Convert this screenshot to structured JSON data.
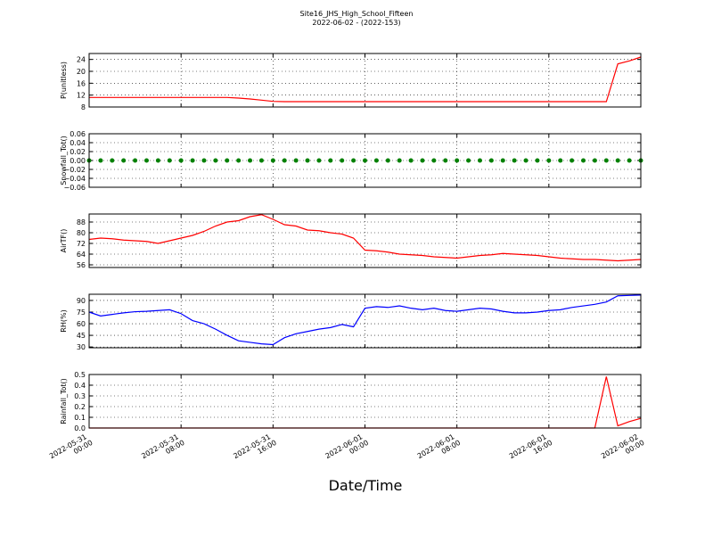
{
  "figure": {
    "title": "Site16_JHS_High_School_Fifteen",
    "subtitle": "2022-06-02 - (2022-153)",
    "xlabel": "Date/Time",
    "xlim": [
      "2022-05-31 00:00",
      "2022-06-02 00:00"
    ],
    "xticks": [
      "2022-05-31 00:00",
      "2022-05-31 08:00",
      "2022-05-31 16:00",
      "2022-06-01 00:00",
      "2022-06-01 08:00",
      "2022-06-01 16:00",
      "2022-06-02 00:00"
    ],
    "x": [
      "2022-05-31 00:00",
      "2022-05-31 01:00",
      "2022-05-31 02:00",
      "2022-05-31 03:00",
      "2022-05-31 04:00",
      "2022-05-31 05:00",
      "2022-05-31 06:00",
      "2022-05-31 07:00",
      "2022-05-31 08:00",
      "2022-05-31 09:00",
      "2022-05-31 10:00",
      "2022-05-31 11:00",
      "2022-05-31 12:00",
      "2022-05-31 13:00",
      "2022-05-31 14:00",
      "2022-05-31 15:00",
      "2022-05-31 16:00",
      "2022-05-31 17:00",
      "2022-05-31 18:00",
      "2022-05-31 19:00",
      "2022-05-31 20:00",
      "2022-05-31 21:00",
      "2022-05-31 22:00",
      "2022-05-31 23:00",
      "2022-06-01 00:00",
      "2022-06-01 01:00",
      "2022-06-01 02:00",
      "2022-06-01 03:00",
      "2022-06-01 04:00",
      "2022-06-01 05:00",
      "2022-06-01 06:00",
      "2022-06-01 07:00",
      "2022-06-01 08:00",
      "2022-06-01 09:00",
      "2022-06-01 10:00",
      "2022-06-01 11:00",
      "2022-06-01 12:00",
      "2022-06-01 13:00",
      "2022-06-01 14:00",
      "2022-06-01 15:00",
      "2022-06-01 16:00",
      "2022-06-01 17:00",
      "2022-06-01 18:00",
      "2022-06-01 19:00",
      "2022-06-01 20:00",
      "2022-06-01 21:00",
      "2022-06-01 22:00",
      "2022-06-01 23:00",
      "2022-06-02 00:00"
    ]
  },
  "chart_data": [
    {
      "type": "line",
      "ylabel": "P(unitless)",
      "ylim": [
        8,
        26
      ],
      "yticks": [
        8,
        12,
        16,
        20,
        24
      ],
      "grid": true,
      "series": [
        {
          "name": "P",
          "color": "#ff0000",
          "values": [
            11.2,
            11.2,
            11.2,
            11.2,
            11.2,
            11.2,
            11.2,
            11.2,
            11.2,
            11.2,
            11.2,
            11.2,
            11.2,
            11,
            10.7,
            10.3,
            9.9,
            9.8,
            9.8,
            9.8,
            9.8,
            9.8,
            9.8,
            9.8,
            9.8,
            9.8,
            9.8,
            9.8,
            9.8,
            9.8,
            9.8,
            9.8,
            9.8,
            9.8,
            9.8,
            9.8,
            9.8,
            9.8,
            9.8,
            9.8,
            9.8,
            9.8,
            9.8,
            9.8,
            9.8,
            9.8,
            22.5,
            23.5,
            24.8
          ]
        }
      ]
    },
    {
      "type": "scatter",
      "ylabel": "Snowfall_Tot()",
      "ylim": [
        -0.06,
        0.06
      ],
      "yticks": [
        {
          "value": -0.06,
          "label": "−0.06"
        },
        {
          "value": -0.04,
          "label": "−0.04"
        },
        {
          "value": -0.02,
          "label": "−0.02"
        },
        {
          "value": 0,
          "label": "0.00"
        },
        0.02,
        0.04,
        0.06
      ],
      "grid": true,
      "series": [
        {
          "name": "Snowfall_Tot",
          "color": "#008000",
          "values": [
            0,
            0,
            0,
            0,
            0,
            0,
            0,
            0,
            0,
            0,
            0,
            0,
            0,
            0,
            0,
            0,
            0,
            0,
            0,
            0,
            0,
            0,
            0,
            0,
            0,
            0,
            0,
            0,
            0,
            0,
            0,
            0,
            0,
            0,
            0,
            0,
            0,
            0,
            0,
            0,
            0,
            0,
            0,
            0,
            0,
            0,
            0,
            0,
            0
          ]
        }
      ]
    },
    {
      "type": "line",
      "ylabel": "AirTF()",
      "ylim": [
        54,
        94
      ],
      "yticks": [
        56,
        64,
        72,
        80,
        88
      ],
      "grid": true,
      "series": [
        {
          "name": "AirTF",
          "color": "#ff0000",
          "values": [
            75,
            76,
            75.5,
            74.5,
            74,
            73.5,
            72,
            74,
            76,
            78,
            81,
            85,
            88,
            89,
            92,
            93.5,
            90,
            86,
            85,
            82,
            81.5,
            80,
            79,
            76,
            67,
            66.5,
            65.5,
            64,
            63.5,
            63,
            62,
            61.5,
            61,
            62,
            63,
            63.5,
            64.5,
            64,
            63.5,
            63,
            62,
            61,
            60.5,
            60,
            60,
            59.5,
            59,
            59.5,
            60
          ]
        }
      ]
    },
    {
      "type": "line",
      "ylabel": "RH(%)",
      "ylim": [
        29,
        98
      ],
      "yticks": [
        30,
        45,
        60,
        75,
        90
      ],
      "grid": true,
      "series": [
        {
          "name": "RH",
          "color": "#0000ff",
          "values": [
            75,
            70,
            72,
            74,
            75.5,
            76,
            77,
            78,
            73,
            64,
            60,
            53,
            45,
            38,
            36,
            34,
            33,
            42,
            47,
            50,
            53,
            55,
            59,
            56,
            80,
            82,
            81,
            83,
            80,
            78,
            80,
            77,
            76,
            78,
            80,
            79,
            76,
            74,
            74,
            75,
            77,
            78,
            81,
            83,
            85,
            88,
            96,
            96.5,
            97
          ]
        }
      ]
    },
    {
      "type": "line",
      "ylabel": "Rainfall_Tot()",
      "ylim": [
        0,
        0.5
      ],
      "yticks": [
        {
          "value": 0,
          "label": "0.0"
        },
        0.1,
        0.2,
        0.3,
        0.4,
        0.5
      ],
      "grid": true,
      "series": [
        {
          "name": "Rainfall_Tot",
          "color": "#ff0000",
          "values": [
            0,
            0,
            0,
            0,
            0,
            0,
            0,
            0,
            0,
            0,
            0,
            0,
            0,
            0,
            0,
            0,
            0,
            0,
            0,
            0,
            0,
            0,
            0,
            0,
            0,
            0,
            0,
            0,
            0,
            0,
            0,
            0,
            0,
            0,
            0,
            0,
            0,
            0,
            0,
            0,
            0,
            0,
            0,
            0,
            0,
            0.48,
            0.02,
            0.06,
            0.09
          ]
        }
      ]
    }
  ]
}
